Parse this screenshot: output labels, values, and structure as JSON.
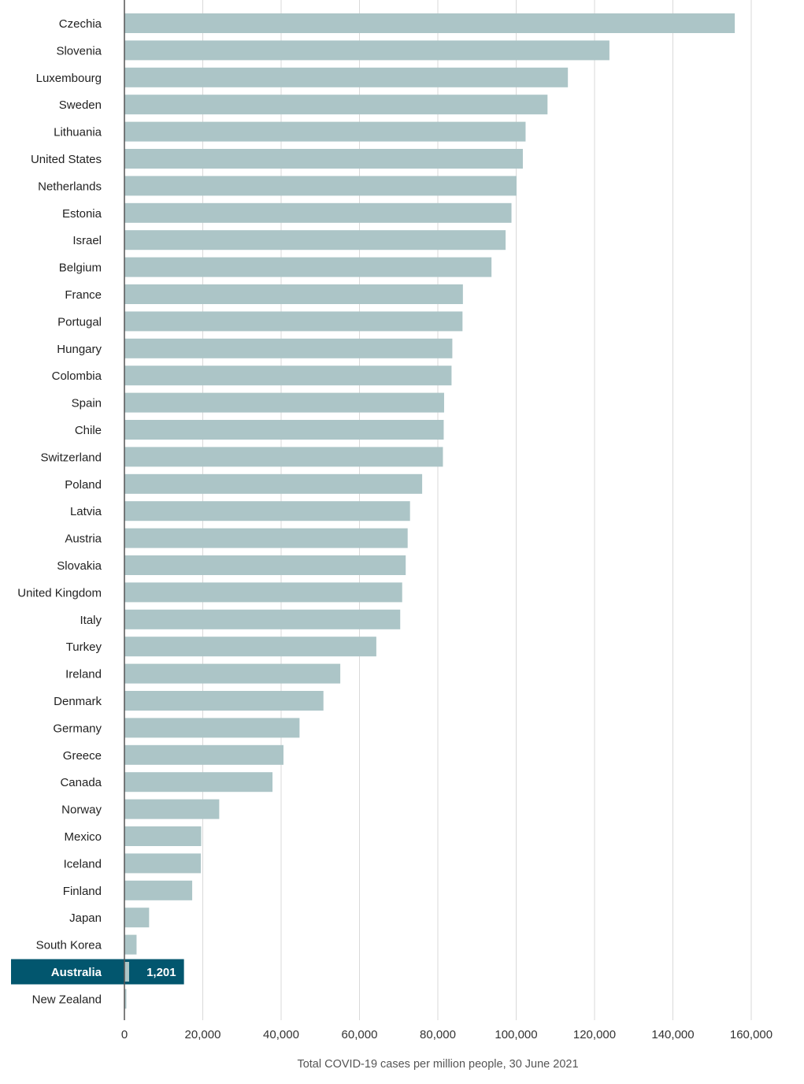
{
  "chart_data": {
    "type": "bar",
    "orientation": "horizontal",
    "title": "",
    "xlabel": "Total COVID-19 cases per million people, 30 June 2021",
    "ylabel": "",
    "xlim": [
      0,
      160000
    ],
    "xticks": [
      0,
      20000,
      40000,
      60000,
      80000,
      100000,
      120000,
      140000,
      160000
    ],
    "xtick_labels": [
      "0",
      "20,000",
      "40,000",
      "60,000",
      "80,000",
      "100,000",
      "120,000",
      "140,000",
      "160,000"
    ],
    "grid": true,
    "categories": [
      "Czechia",
      "Slovenia",
      "Luxembourg",
      "Sweden",
      "Lithuania",
      "United States",
      "Netherlands",
      "Estonia",
      "Israel",
      "Belgium",
      "France",
      "Portugal",
      "Hungary",
      "Colombia",
      "Spain",
      "Chile",
      "Switzerland",
      "Poland",
      "Latvia",
      "Austria",
      "Slovakia",
      "United Kingdom",
      "Italy",
      "Turkey",
      "Ireland",
      "Denmark",
      "Germany",
      "Greece",
      "Canada",
      "Norway",
      "Mexico",
      "Iceland",
      "Finland",
      "Japan",
      "South Korea",
      "Australia",
      "New Zealand"
    ],
    "values": [
      155800,
      123800,
      113200,
      108000,
      102400,
      101700,
      100100,
      98800,
      97300,
      93700,
      86400,
      86300,
      83700,
      83500,
      81600,
      81500,
      81300,
      76000,
      72900,
      72300,
      71800,
      70900,
      70400,
      64300,
      55100,
      50800,
      44700,
      40600,
      37800,
      24200,
      19600,
      19500,
      17300,
      6300,
      3100,
      1201,
      500
    ],
    "highlight": {
      "category": "Australia",
      "value_label": "1,201",
      "color": "#02566e"
    },
    "colors": {
      "bar": "#acc5c7",
      "highlight_band": "#02566e",
      "grid": "#d9d9d9",
      "axis": "#555555"
    }
  }
}
